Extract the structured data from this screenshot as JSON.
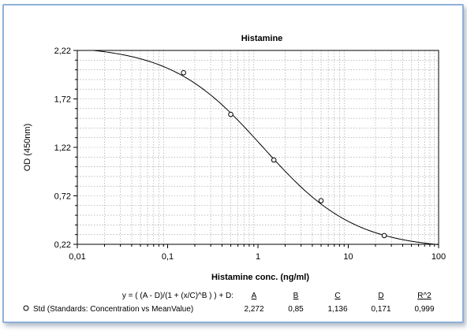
{
  "chart_data": {
    "type": "scatter",
    "title": "Histamine",
    "xlabel": "Histamine conc. (ng/ml)",
    "ylabel": "OD (450nm)",
    "x_scale": "log",
    "xlim": [
      0.01,
      100
    ],
    "ylim": [
      0.22,
      2.22
    ],
    "x_ticks": [
      "0,01",
      "0,1",
      "1",
      "10",
      "100"
    ],
    "y_ticks": [
      "2,22",
      "1,72",
      "1,22",
      "0,72",
      "0,22"
    ],
    "grid": true,
    "series": [
      {
        "name": "Std (Standards: Concentration vs MeanValue)",
        "x": [
          0.15,
          0.5,
          1.5,
          5,
          25
        ],
        "y": [
          1.99,
          1.56,
          1.09,
          0.67,
          0.31
        ]
      }
    ],
    "fit": {
      "equation": "y = ( (A - D)/(1 + (x/C)^B ) ) + D:",
      "headers": [
        "A",
        "B",
        "C",
        "D",
        "R^2"
      ],
      "values": [
        "2,272",
        "0,85",
        "1,136",
        "0,171",
        "0,999"
      ],
      "A": 2.272,
      "B": 0.85,
      "C": 1.136,
      "D": 0.171
    }
  }
}
